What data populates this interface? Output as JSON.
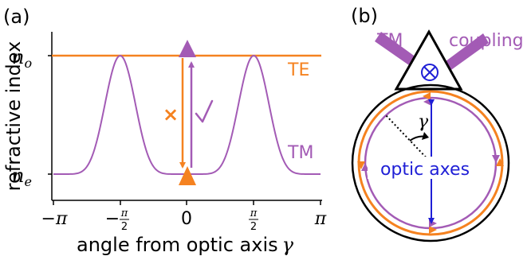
{
  "colors": {
    "te": "#f58220",
    "tm": "#a35bb5",
    "axes": "#1f1fd6",
    "ink": "#000000"
  },
  "panel_a": {
    "label": "(a)",
    "y_label": "refractive index",
    "x_label": "angle from optic axis",
    "x_symbol": "γ",
    "y_ticks": {
      "no_base": "n",
      "no_sub": "o",
      "ne_base": "n",
      "ne_sub": "e"
    },
    "x_ticks": [
      "−π",
      "−",
      "0",
      "π"
    ],
    "frac_pi": "π",
    "frac_2": "2",
    "te_label": "TE",
    "tm_label": "TM",
    "forbidden_mark": "×",
    "allowed_mark": "✓",
    "icons": [
      "up-triangle-icon",
      "checkmark-icon",
      "cross-mark-icon"
    ]
  },
  "panel_b": {
    "label": "(b)",
    "tm_label": "TM",
    "coupling_label": "coupling",
    "gamma_symbol": "γ",
    "axes_label": "optic axes",
    "icons": [
      "prism-icon",
      "into-page-icon"
    ]
  }
}
